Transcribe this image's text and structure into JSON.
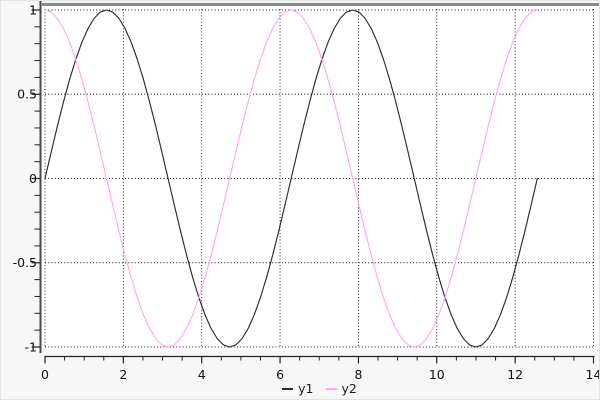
{
  "window": {
    "background": "#f7f7f7",
    "plot_background": "#ffffff",
    "frame_top_color": "#8a8a8a",
    "axis_color": "#4a4a4a",
    "tick_color": "#222222",
    "label_color": "#111111",
    "grid_color": "#111111"
  },
  "chart_data": {
    "type": "line",
    "title": "",
    "xlabel": "",
    "ylabel": "",
    "xlim": [
      0,
      14
    ],
    "ylim": [
      -1,
      1
    ],
    "grid": {
      "visible": true,
      "style": "dotted"
    },
    "x_ticks": {
      "major": [
        0,
        2,
        4,
        6,
        8,
        10,
        12,
        14
      ],
      "labels": [
        "0",
        "2",
        "4",
        "6",
        "8",
        "10",
        "12",
        "14"
      ],
      "minor_per_interval": 3
    },
    "y_ticks": {
      "major": [
        1,
        0.5,
        0,
        -0.5,
        -1
      ],
      "labels": [
        "1",
        "0.5",
        "0",
        "-0.5",
        "-1"
      ],
      "minor_per_interval": 4
    },
    "x_sampling": {
      "start": 0,
      "step": 0.15708,
      "count": 81,
      "end": 12.5664
    },
    "series": [
      {
        "name": "y1",
        "color": "#2b2b2b",
        "values": [
          0,
          0.156,
          0.309,
          0.454,
          0.588,
          0.707,
          0.809,
          0.891,
          0.951,
          0.988,
          1,
          0.988,
          0.951,
          0.891,
          0.809,
          0.707,
          0.588,
          0.454,
          0.309,
          0.156,
          0,
          -0.156,
          -0.309,
          -0.454,
          -0.588,
          -0.707,
          -0.809,
          -0.891,
          -0.951,
          -0.988,
          -1,
          -0.988,
          -0.951,
          -0.891,
          -0.809,
          -0.707,
          -0.588,
          -0.454,
          -0.309,
          -0.156,
          0,
          0.156,
          0.309,
          0.454,
          0.588,
          0.707,
          0.809,
          0.891,
          0.951,
          0.988,
          1,
          0.988,
          0.951,
          0.891,
          0.809,
          0.707,
          0.588,
          0.454,
          0.309,
          0.156,
          0,
          -0.156,
          -0.309,
          -0.454,
          -0.588,
          -0.707,
          -0.809,
          -0.891,
          -0.951,
          -0.988,
          -1,
          -0.988,
          -0.951,
          -0.891,
          -0.809,
          -0.707,
          -0.588,
          -0.454,
          -0.309,
          -0.156,
          0
        ]
      },
      {
        "name": "y2",
        "color": "#ffa8ee",
        "values": [
          1,
          0.988,
          0.951,
          0.891,
          0.809,
          0.707,
          0.588,
          0.454,
          0.309,
          0.156,
          0,
          -0.156,
          -0.309,
          -0.454,
          -0.588,
          -0.707,
          -0.809,
          -0.891,
          -0.951,
          -0.988,
          -1,
          -0.988,
          -0.951,
          -0.891,
          -0.809,
          -0.707,
          -0.588,
          -0.454,
          -0.309,
          -0.156,
          0,
          0.156,
          0.309,
          0.454,
          0.588,
          0.707,
          0.809,
          0.891,
          0.951,
          0.988,
          1,
          0.988,
          0.951,
          0.891,
          0.809,
          0.707,
          0.588,
          0.454,
          0.309,
          0.156,
          0,
          -0.156,
          -0.309,
          -0.454,
          -0.588,
          -0.707,
          -0.809,
          -0.891,
          -0.951,
          -0.988,
          -1,
          -0.988,
          -0.951,
          -0.891,
          -0.809,
          -0.707,
          -0.588,
          -0.454,
          -0.309,
          -0.156,
          0,
          0.156,
          0.309,
          0.454,
          0.588,
          0.707,
          0.809,
          0.891,
          0.951,
          0.988,
          1
        ]
      }
    ],
    "legend": {
      "position": "below",
      "entries": [
        {
          "label": "y1",
          "color": "#2b2b2b"
        },
        {
          "label": "y2",
          "color": "#ffa8ee"
        }
      ]
    }
  }
}
